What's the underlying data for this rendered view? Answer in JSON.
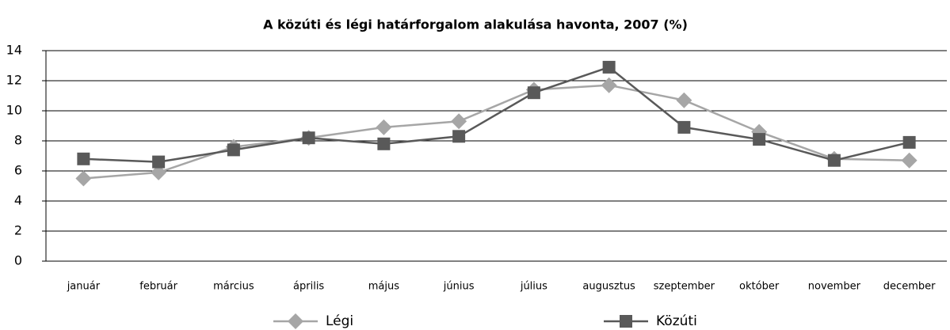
{
  "chart_data": {
    "type": "line",
    "title": "A közúti és légi határforgalom alakulása havonta, 2007 (%)",
    "categories": [
      "január",
      "február",
      "március",
      "április",
      "május",
      "június",
      "július",
      "augusztus",
      "szeptember",
      "október",
      "november",
      "december"
    ],
    "series": [
      {
        "name": "Légi",
        "color": "#a6a6a6",
        "marker": "diamond",
        "values": [
          5.5,
          5.9,
          7.6,
          8.2,
          8.9,
          9.3,
          11.4,
          11.7,
          10.7,
          8.6,
          6.8,
          6.7
        ]
      },
      {
        "name": "Közúti",
        "color": "#595959",
        "marker": "square",
        "values": [
          6.8,
          6.6,
          7.4,
          8.2,
          7.8,
          8.3,
          11.2,
          12.9,
          8.9,
          8.1,
          6.7,
          7.9
        ]
      }
    ],
    "ylim": [
      0,
      14
    ],
    "yticks": [
      0,
      2,
      4,
      6,
      8,
      10,
      12,
      14
    ],
    "grid": true,
    "legend": "bottom"
  }
}
